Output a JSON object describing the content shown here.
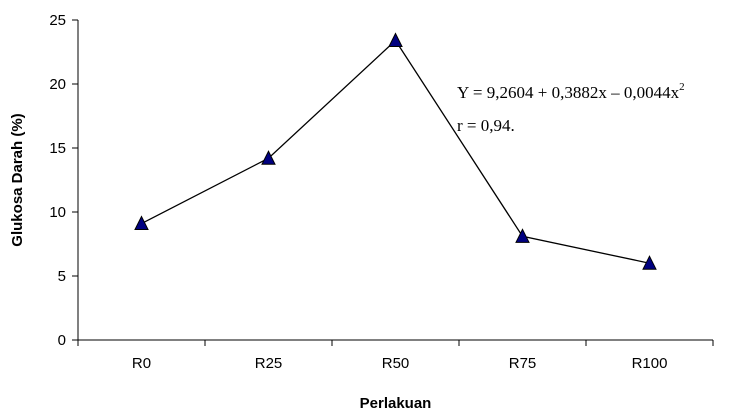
{
  "chart_data": {
    "type": "line",
    "title": "",
    "xlabel": "Perlakuan",
    "ylabel": "Glukosa Darah (%)",
    "categories": [
      "R0",
      "R25",
      "R50",
      "R75",
      "R100"
    ],
    "series": [
      {
        "values": [
          9.1,
          14.2,
          23.4,
          8.1,
          6.0
        ]
      }
    ],
    "ylim": [
      0,
      25
    ],
    "yticks": [
      "0",
      "5",
      "10",
      "15",
      "20",
      "25"
    ],
    "grid": false,
    "marker": "triangle",
    "colors": {
      "line": "#000000",
      "marker_fill": "#000080",
      "marker_stroke": "#000000",
      "axis": "#000000"
    },
    "annotations": {
      "equation": "Y = 9,2604 + 0,3882x – 0,0044x",
      "equation_sup": "2",
      "r": "r = 0,94."
    }
  }
}
